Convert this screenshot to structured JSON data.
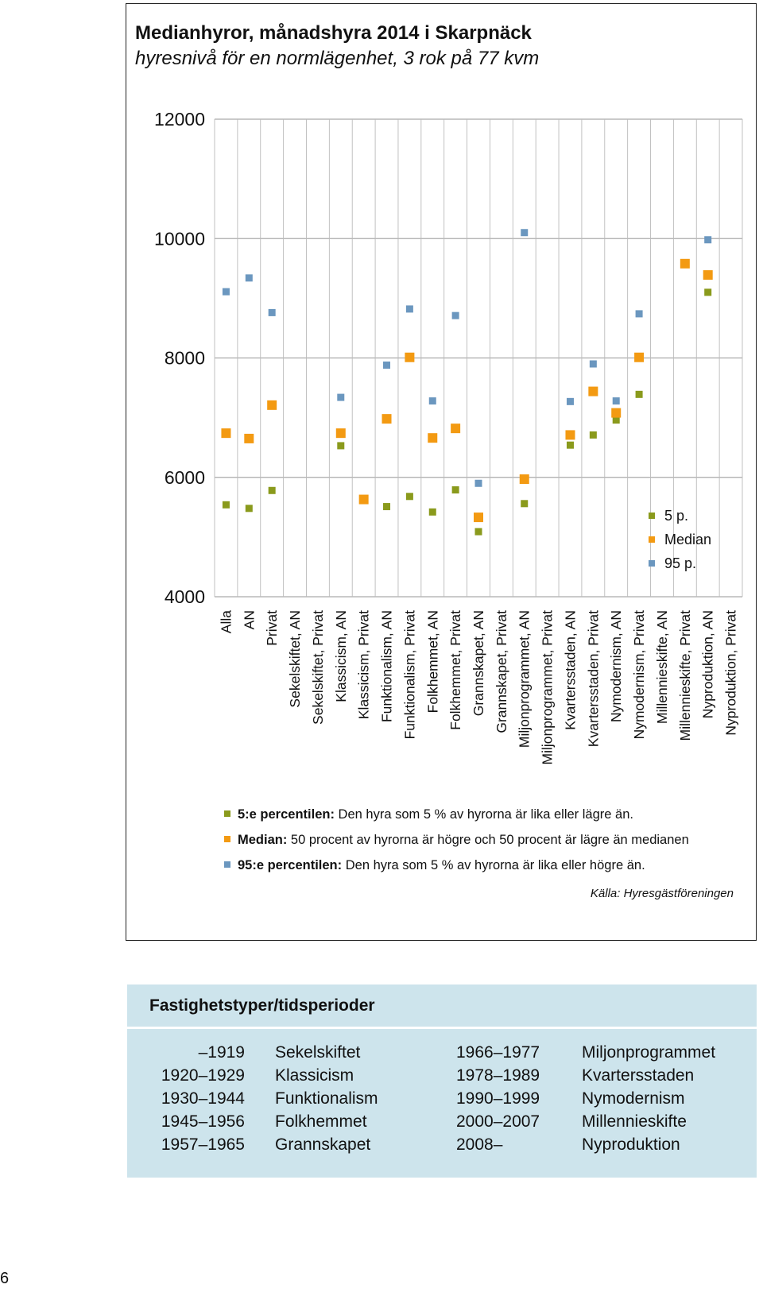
{
  "chart_data": {
    "type": "scatter",
    "title": "Medianhyror, månadshyra 2014 i Skarpnäck",
    "subtitle": "hyresnivå för en normlägenhet, 3 rok på 77 kvm",
    "categories": [
      "Alla",
      "AN",
      "Privat",
      "Sekelskiftet, AN",
      "Sekelskiftet, Privat",
      "Klassicism, AN",
      "Klassicism, Privat",
      "Funktionalism, AN",
      "Funktionalism, Privat",
      "Folkhemmet, AN",
      "Folkhemmet, Privat",
      "Grannskapet, AN",
      "Grannskapet, Privat",
      "Miljonprogrammet, AN",
      "Miljonprogrammet, Privat",
      "Kvartersstaden, AN",
      "Kvartersstaden, Privat",
      "Nymodernism, AN",
      "Nymodernism, Privat",
      "Millennieskifte, AN",
      "Millennieskifte, Privat",
      "Nyproduktion, AN",
      "Nyproduktion, Privat"
    ],
    "ylim": [
      4000,
      12000
    ],
    "yticks": [
      "4000",
      "6000",
      "8000",
      "10000",
      "12000"
    ],
    "grid": true,
    "legend_position": "bottom-right",
    "series": [
      {
        "name": "5 p.",
        "color": "#8a9a1c",
        "values": [
          5540,
          5480,
          5780,
          null,
          null,
          6530,
          null,
          5510,
          5680,
          5420,
          5790,
          5090,
          null,
          5560,
          null,
          6540,
          6710,
          6960,
          7390,
          null,
          null,
          9100,
          null
        ]
      },
      {
        "name": "Median",
        "color": "#f39a12",
        "values": [
          6740,
          6650,
          7210,
          null,
          null,
          6740,
          5630,
          6980,
          8010,
          6660,
          6820,
          5330,
          null,
          5970,
          null,
          6710,
          7440,
          7080,
          8010,
          null,
          9580,
          9390,
          null
        ]
      },
      {
        "name": "95 p.",
        "color": "#6b97bf",
        "values": [
          9110,
          9340,
          8760,
          null,
          null,
          7340,
          null,
          7880,
          8820,
          7280,
          8710,
          5900,
          null,
          10100,
          null,
          7270,
          7900,
          7280,
          8740,
          null,
          null,
          9980,
          null
        ]
      }
    ]
  },
  "legend_notes": [
    {
      "label": "5:e percentilen:",
      "text": " Den hyra som 5 % av hyrorna är lika eller lägre än.",
      "color": "#8a9a1c"
    },
    {
      "label": "Median:",
      "text": " 50 procent av hyrorna är högre och 50 procent är lägre än medianen",
      "color": "#f39a12"
    },
    {
      "label": "95:e percentilen:",
      "text": " Den hyra som 5 % av hyrorna är lika eller högre än.",
      "color": "#6b97bf"
    }
  ],
  "source": "Källa: Hyresgästföreningen",
  "periods": {
    "title": "Fastighetstyper/tidsperioder",
    "rows": [
      {
        "years_a": "–1919",
        "name_a": "Sekelskiftet",
        "years_b": "1966–1977",
        "name_b": "Miljonprogrammet"
      },
      {
        "years_a": "1920–1929",
        "name_a": "Klassicism",
        "years_b": "1978–1989",
        "name_b": "Kvartersstaden"
      },
      {
        "years_a": "1930–1944",
        "name_a": "Funktionalism",
        "years_b": "1990–1999",
        "name_b": "Nymodernism"
      },
      {
        "years_a": "1945–1956",
        "name_a": "Folkhemmet",
        "years_b": "2000–2007",
        "name_b": "Millennieskifte"
      },
      {
        "years_a": "1957–1965",
        "name_a": "Grannskapet",
        "years_b": "2008–",
        "name_b": "Nyproduktion"
      }
    ]
  },
  "page_number": "6"
}
